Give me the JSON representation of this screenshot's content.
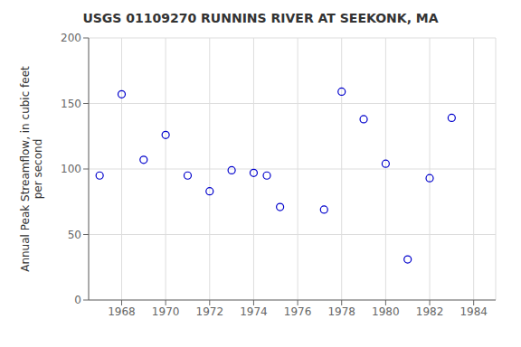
{
  "chart_data": {
    "type": "scatter",
    "title": "USGS 01109270 RUNNINS RIVER AT SEEKONK, MA",
    "ylabel": "Annual Peak Streamflow, in cubic feet\nper second",
    "x": [
      1967,
      1968,
      1969,
      1970,
      1971,
      1972,
      1973,
      1974,
      1974.6,
      1975.2,
      1977.2,
      1978,
      1979,
      1980,
      1981,
      1982,
      1983
    ],
    "values": [
      95,
      157,
      107,
      126,
      95,
      83,
      99,
      97,
      95,
      71,
      69,
      159,
      138,
      104,
      31,
      93,
      139
    ],
    "xlim": [
      1966.5,
      1985.0
    ],
    "ylim": [
      0,
      200
    ],
    "xticks": [
      1968,
      1970,
      1972,
      1974,
      1976,
      1978,
      1980,
      1982,
      1984
    ],
    "yticks": [
      0,
      50,
      100,
      150,
      200
    ],
    "grid": true,
    "color": "#0000cc",
    "marker": "circle"
  }
}
